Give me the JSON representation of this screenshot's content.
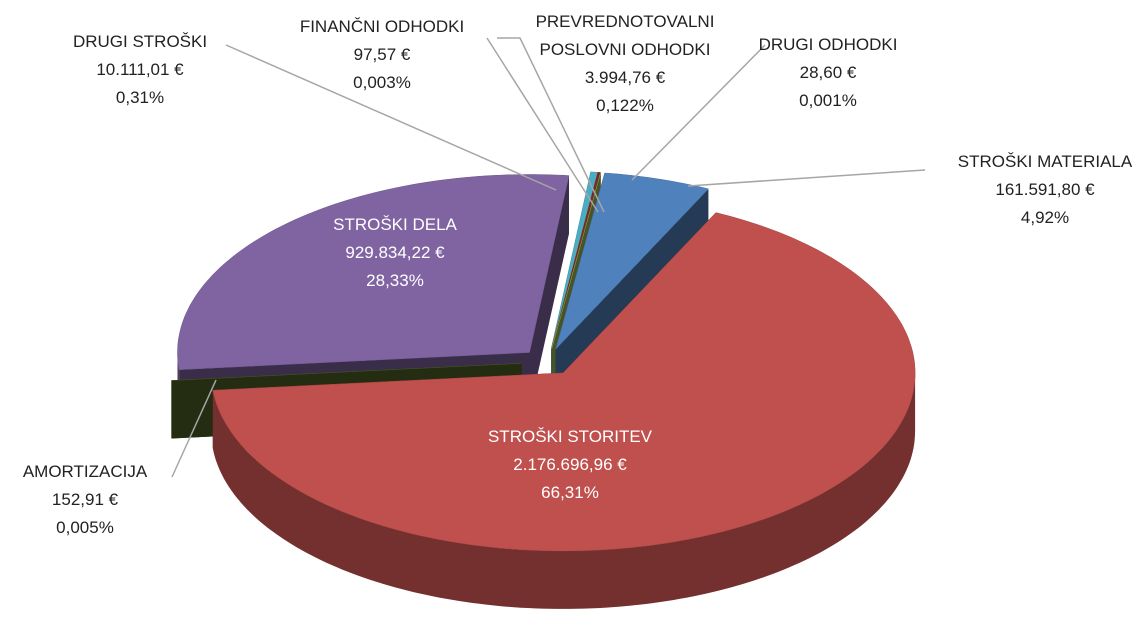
{
  "chart_data": {
    "type": "pie3d",
    "categories": [
      "DRUGI ODHODKI",
      "STROŠKI MATERIALA",
      "STROŠKI STORITEV",
      "AMORTIZACIJA",
      "STROŠKI DELA",
      "DRUGI STROŠKI",
      "FINANČNI ODHODKI",
      "PREVREDNOTOVALNI POSLOVNI ODHODKI"
    ],
    "values": [
      28.6,
      161591.8,
      2176696.96,
      152.91,
      929834.22,
      10111.01,
      97.57,
      3994.76
    ],
    "value_labels": [
      "28,60 €",
      "161.591,80 €",
      "2.176.696,96 €",
      "152,91 €",
      "929.834,22 €",
      "10.111,01 €",
      "97,57 €",
      "3.994,76 €"
    ],
    "percentages": [
      0.001,
      4.92,
      66.31,
      0.005,
      28.33,
      0.31,
      0.003,
      0.122
    ],
    "percentage_labels": [
      "0,001%",
      "4,92%",
      "66,31%",
      "0,005%",
      "28,33%",
      "0,31%",
      "0,003%",
      "0,122%"
    ],
    "colors": [
      "#9bbb59",
      "#4f81bd",
      "#c0504d",
      "#4f6228",
      "#8064a2",
      "#4bacc6",
      "#f79646",
      "#772c2a"
    ]
  }
}
